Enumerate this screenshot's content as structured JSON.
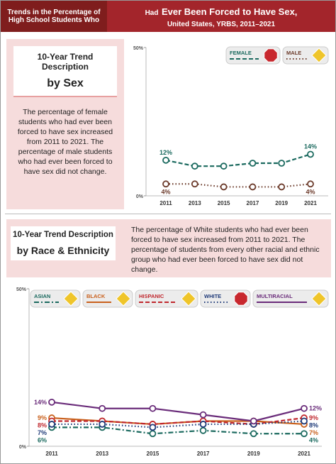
{
  "header": {
    "left": "Trends in the Percentage of High School Students Who",
    "right_lead": "Had",
    "right_emph": "Ever Been Forced to Have Sex,",
    "right_sub": "United States, YRBS, 2011–2021"
  },
  "sections": [
    {
      "label": "10-Year Trend Description",
      "by": "by Sex",
      "text": "The percentage of female students who had ever been forced to have sex increased from 2011 to 2021. The percentage of male students who had ever been forced to have sex did not change."
    },
    {
      "label": "10-Year Trend Description",
      "by": "by Race & Ethnicity",
      "text": "The percentage of White students who had ever been forced to have sex increased from 2011 to 2021. The percentage of students from every other racial and ethnic group who had ever been forced to have sex did not change."
    }
  ],
  "chart_data": [
    {
      "type": "line",
      "categories": [
        "2011",
        "2013",
        "2015",
        "2017",
        "2019",
        "2021"
      ],
      "ylim": [
        0,
        50
      ],
      "yticks": [
        {
          "value": 0,
          "label": "0%"
        },
        {
          "value": 50,
          "label": "50%"
        }
      ],
      "series": [
        {
          "name": "FEMALE",
          "color": "#1b6a5f",
          "dash": "dashed",
          "icon": "octagon",
          "values": [
            12,
            10,
            10,
            11,
            11,
            14
          ],
          "value_labels": [
            "12%",
            null,
            null,
            null,
            null,
            "14%"
          ]
        },
        {
          "name": "MALE",
          "color": "#6b3a2a",
          "dash": "dotted",
          "icon": "diamond",
          "values": [
            4,
            4,
            3,
            3,
            3,
            4
          ],
          "value_labels": [
            "4%",
            null,
            null,
            null,
            null,
            "4%"
          ]
        }
      ]
    },
    {
      "type": "line",
      "categories": [
        "2011",
        "2013",
        "2015",
        "2017",
        "2019",
        "2021"
      ],
      "ylim": [
        0,
        50
      ],
      "yticks": [
        {
          "value": 0,
          "label": "0%"
        },
        {
          "value": 50,
          "label": "50%"
        }
      ],
      "series": [
        {
          "name": "ASIAN",
          "color": "#1b6a5f",
          "dash": "dashdot",
          "icon": "diamond",
          "values": [
            6,
            6,
            4,
            5,
            4,
            4
          ],
          "value_labels": [
            "6%",
            null,
            null,
            null,
            null,
            "4%"
          ]
        },
        {
          "name": "BLACK",
          "color": "#c9601c",
          "dash": "solid",
          "icon": "diamond",
          "values": [
            9,
            8,
            7,
            8,
            8,
            7
          ],
          "value_labels": [
            "9%",
            null,
            null,
            null,
            null,
            "7%"
          ]
        },
        {
          "name": "HISPANIC",
          "color": "#c0282e",
          "dash": "dashed",
          "icon": "diamond",
          "values": [
            8,
            8,
            7,
            8,
            7,
            9
          ],
          "value_labels": [
            "8%",
            null,
            null,
            null,
            null,
            "9%"
          ]
        },
        {
          "name": "WHITE",
          "color": "#1f3a78",
          "dash": "dotted",
          "icon": "octagon",
          "values": [
            7,
            7,
            6,
            7,
            7,
            8
          ],
          "value_labels": [
            "7%",
            null,
            null,
            null,
            null,
            "8%"
          ]
        },
        {
          "name": "MULTIRACIAL",
          "color": "#6a2c7a",
          "dash": "solid",
          "icon": "diamond",
          "values": [
            14,
            12,
            12,
            10,
            8,
            12
          ],
          "value_labels": [
            "14%",
            null,
            null,
            null,
            null,
            "12%"
          ]
        }
      ]
    }
  ]
}
